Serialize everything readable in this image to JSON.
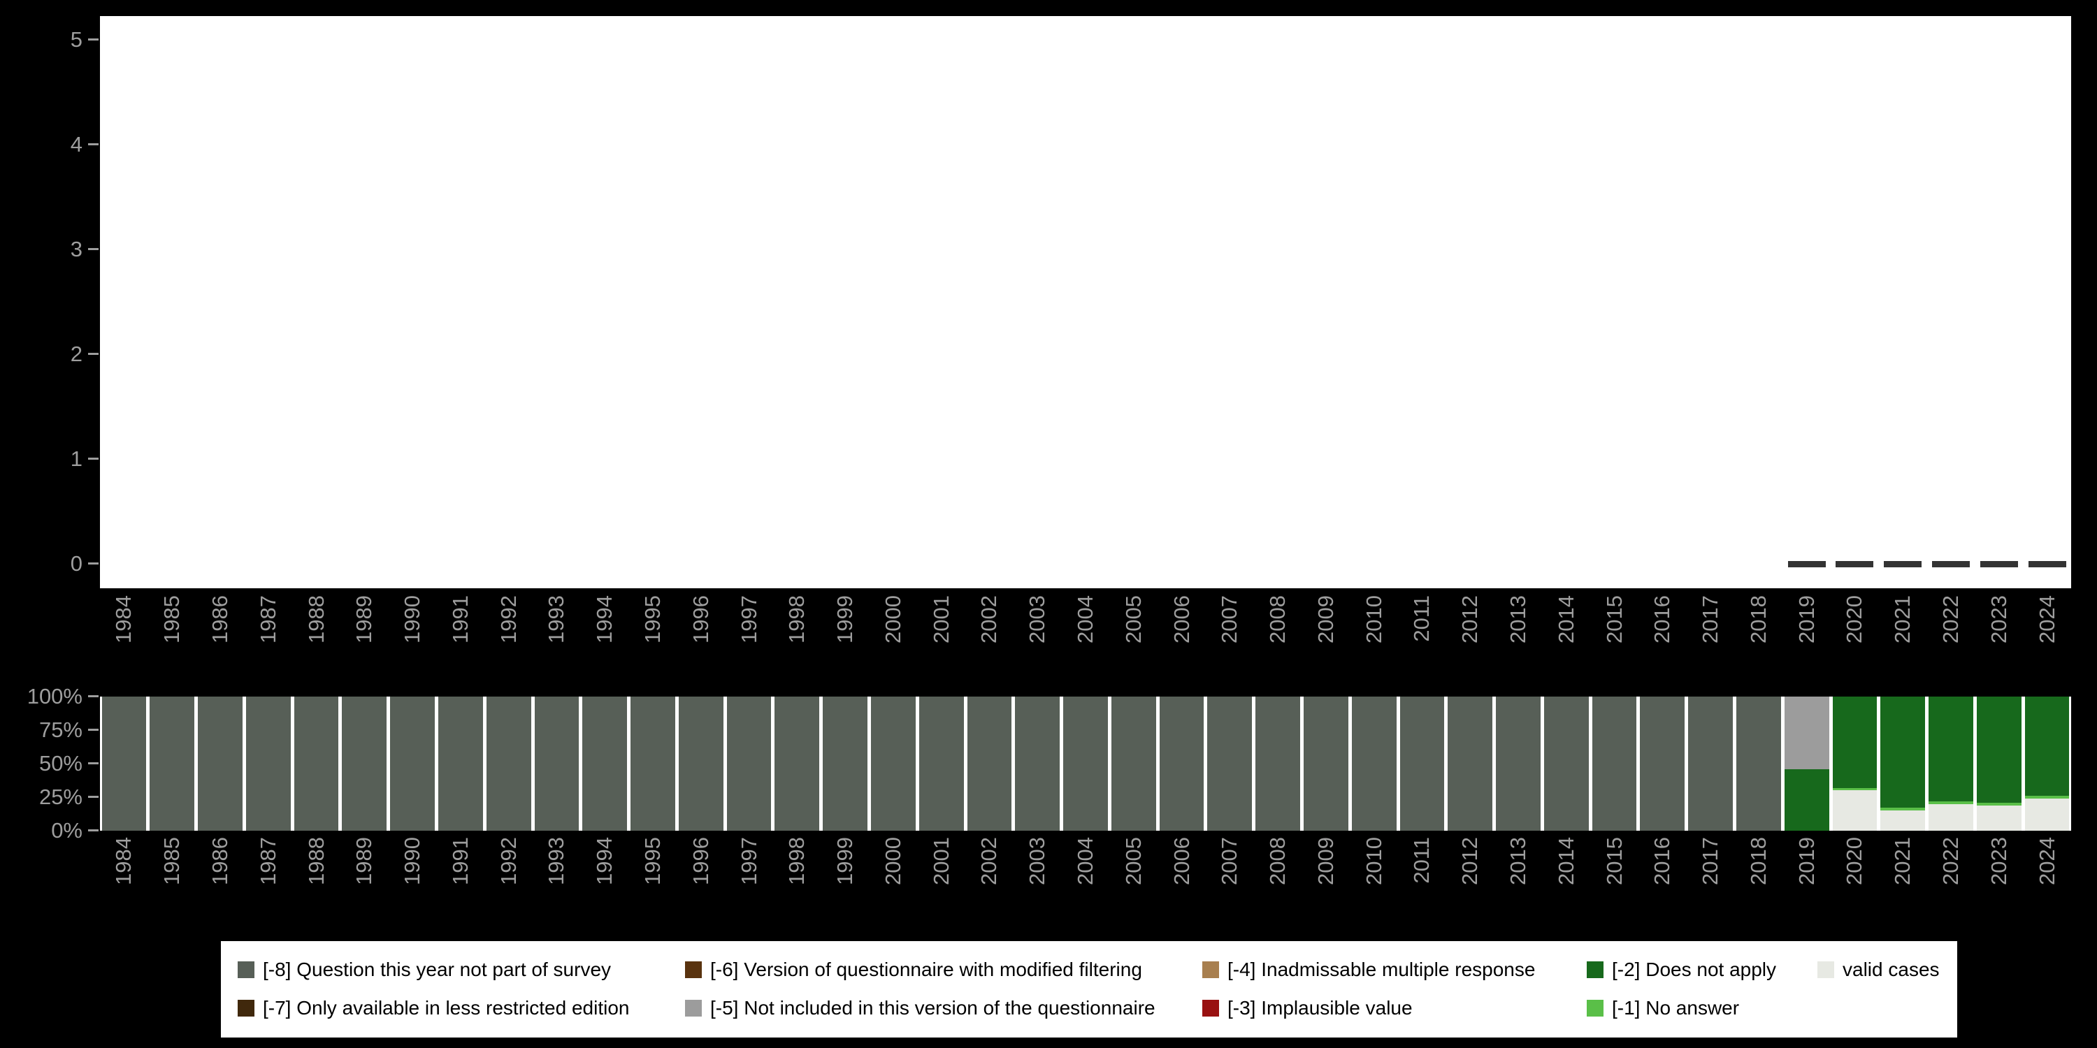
{
  "colors": {
    "background": "#000000",
    "plot_background": "#ffffff",
    "axis_text": "#9e9e9e",
    "mean_dash": "#333333",
    "legend_background": "#ffffff",
    "legend_text": "#000000"
  },
  "legend": {
    "items": [
      {
        "code": "-8",
        "label": "[-8] Question this year not part of survey",
        "color": "#575f57"
      },
      {
        "code": "-7",
        "label": "[-7] Only available in less restricted edition",
        "color": "#40280c"
      },
      {
        "code": "-6",
        "label": "[-6] Version of questionnaire with modified filtering",
        "color": "#59330f"
      },
      {
        "code": "-5",
        "label": "[-5] Not included in this version of the questionnaire",
        "color": "#9c9c9c"
      },
      {
        "code": "-4",
        "label": "[-4] Inadmissable multiple response",
        "color": "#a87f4f"
      },
      {
        "code": "-3",
        "label": "[-3] Implausible value",
        "color": "#991111"
      },
      {
        "code": "-2",
        "label": "[-2] Does not apply",
        "color": "#17691c"
      },
      {
        "code": "-1",
        "label": "[-1] No answer",
        "color": "#5abf48"
      },
      {
        "code": "valid",
        "label": "valid cases",
        "color": "#e7e9e3"
      }
    ]
  },
  "chart_data": [
    {
      "type": "scatter",
      "marker": "dash",
      "title": "",
      "xlabel": "",
      "ylabel": "",
      "ylim": [
        0,
        5
      ],
      "yticks": [
        0,
        1,
        2,
        3,
        4,
        5
      ],
      "grid": false,
      "x": [
        2019,
        2020,
        2021,
        2022,
        2023,
        2024
      ],
      "y": [
        0,
        0,
        0,
        0,
        0,
        0
      ]
    },
    {
      "type": "bar",
      "stacked": true,
      "unit": "percent",
      "title": "",
      "xlabel": "",
      "ylabel": "",
      "ytick_labels": [
        "0%",
        "25%",
        "50%",
        "75%",
        "100%"
      ],
      "yticks": [
        0,
        25,
        50,
        75,
        100
      ],
      "categories": [
        1984,
        1985,
        1986,
        1987,
        1988,
        1989,
        1990,
        1991,
        1992,
        1993,
        1994,
        1995,
        1996,
        1997,
        1998,
        1999,
        2000,
        2001,
        2002,
        2003,
        2004,
        2005,
        2006,
        2007,
        2008,
        2009,
        2010,
        2011,
        2012,
        2013,
        2014,
        2015,
        2016,
        2017,
        2018,
        2019,
        2020,
        2021,
        2022,
        2023,
        2024
      ],
      "stack_order": [
        "valid",
        "-1",
        "-2",
        "-3",
        "-4",
        "-5",
        "-6",
        "-7",
        "-8"
      ],
      "bars": [
        {
          "year": 1984,
          "segments": {
            "-8": 100
          }
        },
        {
          "year": 1985,
          "segments": {
            "-8": 100
          }
        },
        {
          "year": 1986,
          "segments": {
            "-8": 100
          }
        },
        {
          "year": 1987,
          "segments": {
            "-8": 100
          }
        },
        {
          "year": 1988,
          "segments": {
            "-8": 100
          }
        },
        {
          "year": 1989,
          "segments": {
            "-8": 100
          }
        },
        {
          "year": 1990,
          "segments": {
            "-8": 100
          }
        },
        {
          "year": 1991,
          "segments": {
            "-8": 100
          }
        },
        {
          "year": 1992,
          "segments": {
            "-8": 100
          }
        },
        {
          "year": 1993,
          "segments": {
            "-8": 100
          }
        },
        {
          "year": 1994,
          "segments": {
            "-8": 100
          }
        },
        {
          "year": 1995,
          "segments": {
            "-8": 100
          }
        },
        {
          "year": 1996,
          "segments": {
            "-8": 100
          }
        },
        {
          "year": 1997,
          "segments": {
            "-8": 100
          }
        },
        {
          "year": 1998,
          "segments": {
            "-8": 100
          }
        },
        {
          "year": 1999,
          "segments": {
            "-8": 100
          }
        },
        {
          "year": 2000,
          "segments": {
            "-8": 100
          }
        },
        {
          "year": 2001,
          "segments": {
            "-8": 100
          }
        },
        {
          "year": 2002,
          "segments": {
            "-8": 100
          }
        },
        {
          "year": 2003,
          "segments": {
            "-8": 100
          }
        },
        {
          "year": 2004,
          "segments": {
            "-8": 100
          }
        },
        {
          "year": 2005,
          "segments": {
            "-8": 100
          }
        },
        {
          "year": 2006,
          "segments": {
            "-8": 100
          }
        },
        {
          "year": 2007,
          "segments": {
            "-8": 100
          }
        },
        {
          "year": 2008,
          "segments": {
            "-8": 100
          }
        },
        {
          "year": 2009,
          "segments": {
            "-8": 100
          }
        },
        {
          "year": 2010,
          "segments": {
            "-8": 100
          }
        },
        {
          "year": 2011,
          "segments": {
            "-8": 100
          }
        },
        {
          "year": 2012,
          "segments": {
            "-8": 100
          }
        },
        {
          "year": 2013,
          "segments": {
            "-8": 100
          }
        },
        {
          "year": 2014,
          "segments": {
            "-8": 100
          }
        },
        {
          "year": 2015,
          "segments": {
            "-8": 100
          }
        },
        {
          "year": 2016,
          "segments": {
            "-8": 100
          }
        },
        {
          "year": 2017,
          "segments": {
            "-8": 100
          }
        },
        {
          "year": 2018,
          "segments": {
            "-8": 100
          }
        },
        {
          "year": 2019,
          "segments": {
            "-2": 46,
            "-5": 54
          }
        },
        {
          "year": 2020,
          "segments": {
            "valid": 30,
            "-1": 2,
            "-2": 68
          }
        },
        {
          "year": 2021,
          "segments": {
            "valid": 15,
            "-1": 2,
            "-2": 83
          }
        },
        {
          "year": 2022,
          "segments": {
            "valid": 20,
            "-1": 2,
            "-2": 78
          }
        },
        {
          "year": 2023,
          "segments": {
            "valid": 19,
            "-1": 2,
            "-2": 79
          }
        },
        {
          "year": 2024,
          "segments": {
            "valid": 24,
            "-1": 2,
            "-2": 74
          }
        }
      ]
    }
  ]
}
